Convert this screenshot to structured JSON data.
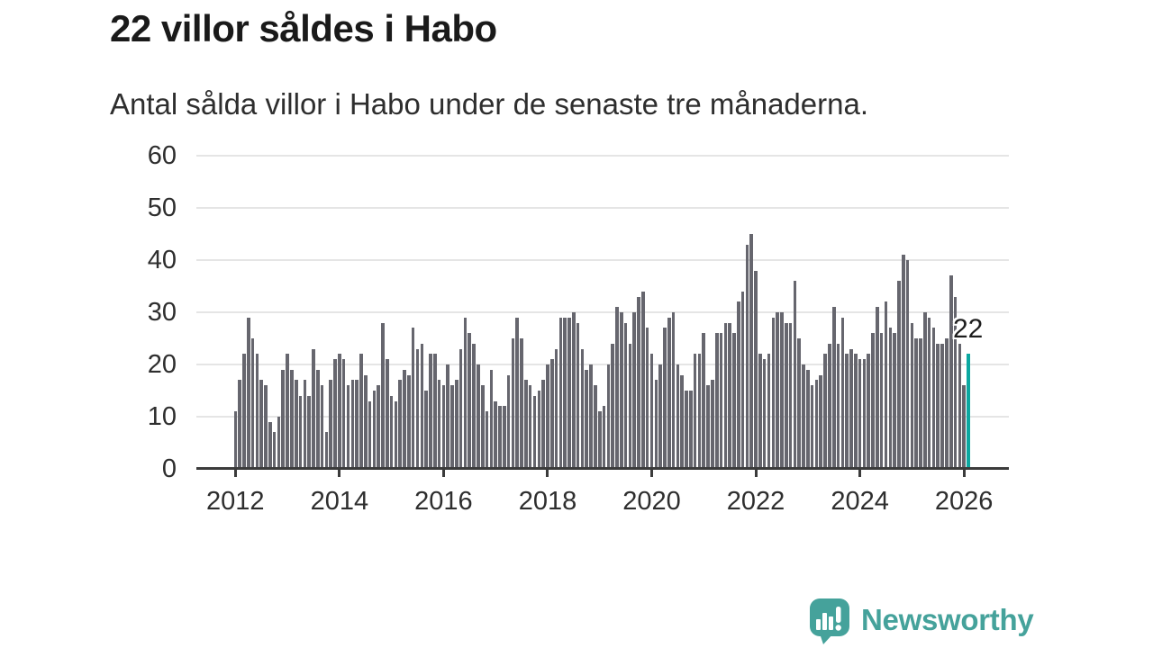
{
  "title": "22 villor såldes i Habo",
  "subtitle": "Antal sålda villor i Habo under de senaste tre månaderna.",
  "annotation": {
    "label": "22"
  },
  "branding": {
    "name": "Newsworthy",
    "icon": "newsworthy-speech-bubble-chart-icon"
  },
  "colors": {
    "bar": "#66666e",
    "highlight": "#0ca8a1",
    "grid": "#e5e5e5",
    "axis": "#3b3b3b",
    "text": "#2e2e2e",
    "brand": "#45a29b"
  },
  "chart_data": {
    "type": "bar",
    "title": "22 villor såldes i Habo",
    "subtitle": "Antal sålda villor i Habo under de senaste tre månaderna.",
    "x_start": "2012-01",
    "x_end": "2026-02",
    "x_unit": "month",
    "ylim": [
      0,
      60
    ],
    "grid": true,
    "y_ticks": [
      0,
      10,
      20,
      30,
      40,
      50,
      60
    ],
    "x_ticks": [
      {
        "label": "2012",
        "month_index": 0
      },
      {
        "label": "2014",
        "month_index": 24
      },
      {
        "label": "2016",
        "month_index": 48
      },
      {
        "label": "2018",
        "month_index": 72
      },
      {
        "label": "2020",
        "month_index": 96
      },
      {
        "label": "2022",
        "month_index": 120
      },
      {
        "label": "2024",
        "month_index": 144
      },
      {
        "label": "2026",
        "month_index": 168
      }
    ],
    "highlight_last": true,
    "highlight_last_value": 22,
    "values": [
      11,
      17,
      22,
      29,
      25,
      22,
      17,
      16,
      9,
      7,
      10,
      19,
      22,
      19,
      17,
      14,
      17,
      14,
      23,
      19,
      16,
      7,
      17,
      21,
      22,
      21,
      16,
      17,
      17,
      22,
      18,
      13,
      15,
      16,
      28,
      21,
      14,
      13,
      17,
      19,
      18,
      27,
      23,
      24,
      15,
      22,
      22,
      17,
      16,
      20,
      16,
      17,
      23,
      29,
      26,
      24,
      20,
      16,
      11,
      19,
      13,
      12,
      12,
      18,
      25,
      29,
      25,
      17,
      16,
      14,
      15,
      17,
      20,
      21,
      23,
      29,
      29,
      29,
      30,
      28,
      23,
      19,
      20,
      16,
      11,
      12,
      20,
      24,
      31,
      30,
      28,
      24,
      30,
      33,
      34,
      27,
      22,
      17,
      20,
      27,
      29,
      30,
      20,
      18,
      15,
      15,
      22,
      22,
      26,
      16,
      17,
      26,
      26,
      28,
      28,
      26,
      32,
      34,
      43,
      45,
      38,
      22,
      21,
      22,
      29,
      30,
      30,
      28,
      28,
      36,
      25,
      20,
      19,
      16,
      17,
      18,
      22,
      24,
      31,
      24,
      29,
      22,
      23,
      22,
      21,
      21,
      22,
      26,
      31,
      26,
      32,
      27,
      26,
      36,
      41,
      40,
      28,
      25,
      25,
      30,
      29,
      27,
      24,
      24,
      25,
      37,
      33,
      24,
      16,
      22
    ]
  }
}
